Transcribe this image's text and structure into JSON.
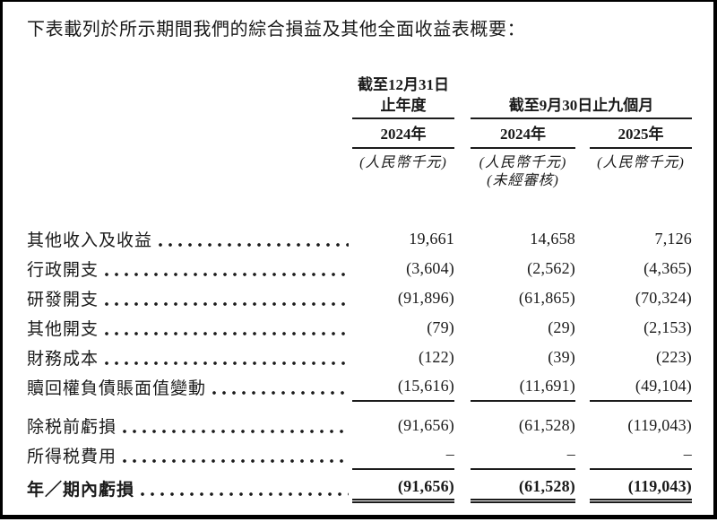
{
  "intro": "下表載列於所示期間我們的綜合損益及其他全面收益表概要：",
  "table": {
    "group1": {
      "line1": "截至12月31日",
      "line2": "止年度"
    },
    "group2": {
      "title": "截至9月30日止九個月"
    },
    "columns": [
      {
        "year": "2024年",
        "unit": "(人民幣千元)",
        "note": ""
      },
      {
        "year": "2024年",
        "unit": "(人民幣千元)",
        "note": "(未經審核)"
      },
      {
        "year": "2025年",
        "unit": "(人民幣千元)",
        "note": ""
      }
    ],
    "rows": [
      {
        "label": "其他收入及收益",
        "values": [
          "19,661",
          "14,658",
          "7,126"
        ]
      },
      {
        "label": "行政開支",
        "values": [
          "(3,604)",
          "(2,562)",
          "(4,365)"
        ]
      },
      {
        "label": "研發開支",
        "values": [
          "(91,896)",
          "(61,865)",
          "(70,324)"
        ]
      },
      {
        "label": "其他開支",
        "values": [
          "(79)",
          "(29)",
          "(2,153)"
        ]
      },
      {
        "label": "財務成本",
        "values": [
          "(122)",
          "(39)",
          "(223)"
        ]
      },
      {
        "label": "贖回權負債賬面值變動",
        "values": [
          "(15,616)",
          "(11,691)",
          "(49,104)"
        ]
      },
      {
        "label": "除税前虧損",
        "values": [
          "(91,656)",
          "(61,528)",
          "(119,043)"
        ]
      },
      {
        "label": "所得税費用",
        "values": [
          "–",
          "–",
          "–"
        ]
      },
      {
        "label": "年／期內虧損",
        "values": [
          "(91,656)",
          "(61,528)",
          "(119,043)"
        ]
      }
    ]
  }
}
